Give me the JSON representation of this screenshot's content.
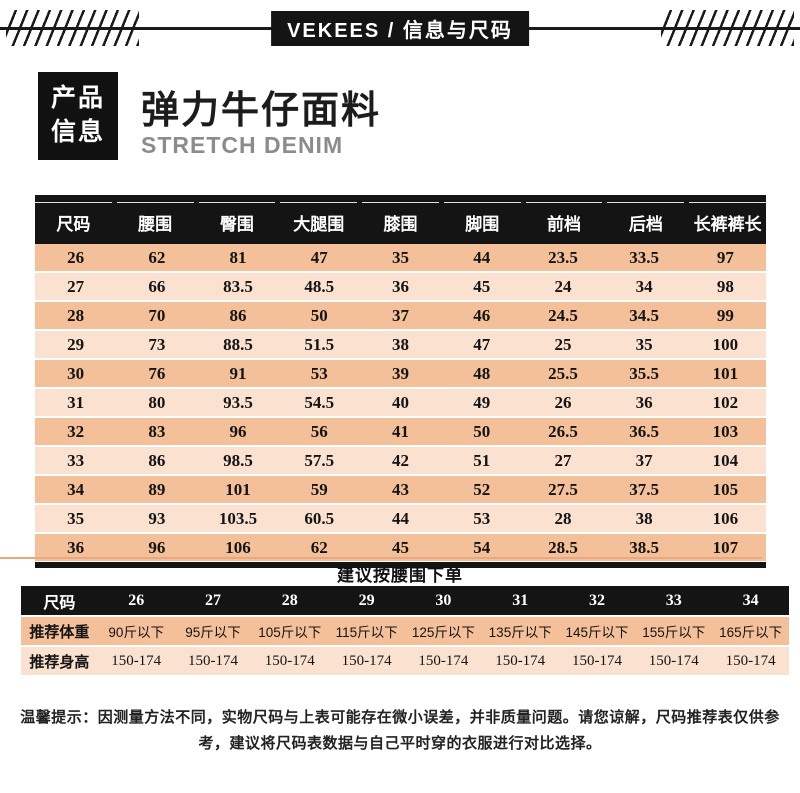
{
  "header": {
    "brand_title": "VEKEES  /  信息与尺码"
  },
  "product": {
    "badge_line1": "产品",
    "badge_line2": "信息",
    "title": "弹力牛仔面料",
    "subtitle": "STRETCH DENIM"
  },
  "size_table": {
    "columns": [
      "尺码",
      "腰围",
      "臀围",
      "大腿围",
      "膝围",
      "脚围",
      "前档",
      "后档",
      "长裤裤长"
    ],
    "rows": [
      [
        "26",
        "62",
        "81",
        "47",
        "35",
        "44",
        "23.5",
        "33.5",
        "97"
      ],
      [
        "27",
        "66",
        "83.5",
        "48.5",
        "36",
        "45",
        "24",
        "34",
        "98"
      ],
      [
        "28",
        "70",
        "86",
        "50",
        "37",
        "46",
        "24.5",
        "34.5",
        "99"
      ],
      [
        "29",
        "73",
        "88.5",
        "51.5",
        "38",
        "47",
        "25",
        "35",
        "100"
      ],
      [
        "30",
        "76",
        "91",
        "53",
        "39",
        "48",
        "25.5",
        "35.5",
        "101"
      ],
      [
        "31",
        "80",
        "93.5",
        "54.5",
        "40",
        "49",
        "26",
        "36",
        "102"
      ],
      [
        "32",
        "83",
        "96",
        "56",
        "41",
        "50",
        "26.5",
        "36.5",
        "103"
      ],
      [
        "33",
        "86",
        "98.5",
        "57.5",
        "42",
        "51",
        "27",
        "37",
        "104"
      ],
      [
        "34",
        "89",
        "101",
        "59",
        "43",
        "52",
        "27.5",
        "37.5",
        "105"
      ],
      [
        "35",
        "93",
        "103.5",
        "60.5",
        "44",
        "53",
        "28",
        "38",
        "106"
      ],
      [
        "36",
        "96",
        "106",
        "62",
        "45",
        "54",
        "28.5",
        "38.5",
        "107"
      ]
    ]
  },
  "suggestion": {
    "title": "建议按腰围下单",
    "header": [
      "尺码",
      "26",
      "27",
      "28",
      "29",
      "30",
      "31",
      "32",
      "33",
      "34"
    ],
    "rows": [
      {
        "label": "推荐体重",
        "values": [
          "90斤以下",
          "95斤以下",
          "105斤以下",
          "115斤以下",
          "125斤以下",
          "135斤以下",
          "145斤以下",
          "155斤以下",
          "165斤以下"
        ]
      },
      {
        "label": "推荐身高",
        "values": [
          "150-174",
          "150-174",
          "150-174",
          "150-174",
          "150-174",
          "150-174",
          "150-174",
          "150-174",
          "150-174"
        ]
      }
    ]
  },
  "notice": "温馨提示：因测量方法不同，实物尺码与上表可能存在微小误差，并非质量问题。请您谅解，尺码推荐表仅供参考，建议将尺码表数据与自己平时穿的衣服进行对比选择。",
  "colors": {
    "row_dark": "#f4c09a",
    "row_light": "#fbe2d0",
    "header_bg": "#141414",
    "accent_line": "#e9a87e"
  }
}
